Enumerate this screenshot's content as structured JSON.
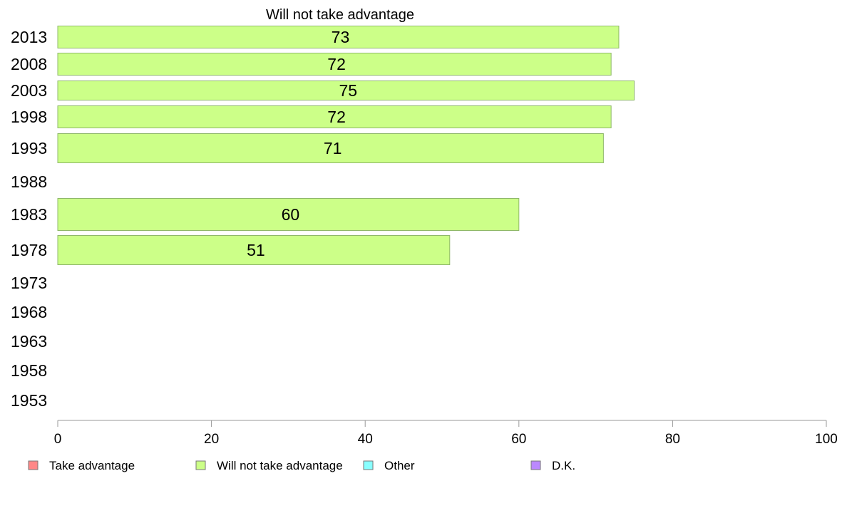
{
  "chart_data": {
    "type": "bar",
    "orientation": "horizontal",
    "title": "Will not take advantage",
    "categories": [
      "2013",
      "2008",
      "2003",
      "1998",
      "1993",
      "1988",
      "1983",
      "1978",
      "1973",
      "1968",
      "1963",
      "1958",
      "1953"
    ],
    "series": [
      {
        "name": "Will not take advantage",
        "color": "#ccff88",
        "values": [
          73,
          72,
          75,
          72,
          71,
          null,
          60,
          51,
          null,
          null,
          null,
          null,
          null
        ]
      }
    ],
    "xlim": [
      0,
      100
    ],
    "xticks": [
      "0",
      "20",
      "40",
      "60",
      "80",
      "100"
    ],
    "grid": false,
    "legend_position": "bottom",
    "legend": [
      {
        "label": "Take advantage",
        "color": "#ff8888"
      },
      {
        "label": "Will not take advantage",
        "color": "#ccff88"
      },
      {
        "label": "Other",
        "color": "#88ffff"
      },
      {
        "label": "D.K.",
        "color": "#bb88ff"
      }
    ]
  }
}
